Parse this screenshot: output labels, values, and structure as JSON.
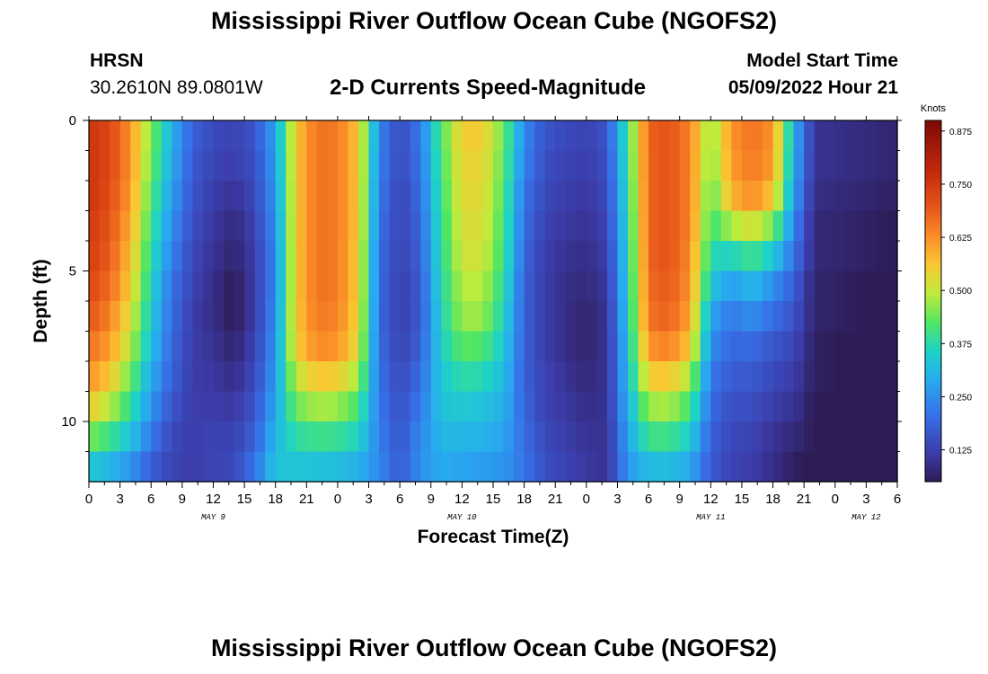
{
  "page": {
    "title": "Mississippi River Outflow Ocean Cube (NGOFS2)",
    "title_bottom": "Mississippi River Outflow Ocean Cube (NGOFS2)",
    "station": "HRSN",
    "coords": "30.2610N  89.0801W",
    "subtitle": "2-D Currents Speed-Magnitude",
    "model_start_label": "Model Start Time",
    "model_start_value": "05/09/2022 Hour 21"
  },
  "chart_data": {
    "type": "heatmap",
    "title": "2-D Currents Speed-Magnitude",
    "xlabel": "Forecast Time(Z)",
    "ylabel": "Depth (ft)",
    "colorbar_label": "Knots",
    "x_tick_labels": [
      "0",
      "3",
      "6",
      "9",
      "12",
      "15",
      "18",
      "21",
      "0",
      "3",
      "6",
      "9",
      "12",
      "15",
      "18",
      "21",
      "0",
      "3",
      "6",
      "9",
      "12",
      "15",
      "18",
      "21",
      "0",
      "3",
      "6"
    ],
    "day_labels": [
      {
        "label": "MAY 9",
        "hour": 12
      },
      {
        "label": "MAY 10",
        "hour": 36
      },
      {
        "label": "MAY 11",
        "hour": 60
      },
      {
        "label": "MAY 12",
        "hour": 75
      }
    ],
    "xlim_hours": [
      0,
      78
    ],
    "ylim_depth_ft": [
      0,
      12
    ],
    "y_tick_labels": [
      {
        "label": "0",
        "value": 0
      },
      {
        "label": "5",
        "value": 5
      },
      {
        "label": "10",
        "value": 10
      }
    ],
    "colorbar_ticks": [
      "0.125",
      "0.250",
      "0.375",
      "0.500",
      "0.625",
      "0.750",
      "0.875"
    ],
    "colorbar_tick_values": [
      0.125,
      0.25,
      0.375,
      0.5,
      0.625,
      0.75,
      0.875
    ],
    "colorbar_range": [
      0.05,
      0.9
    ],
    "depth_levels_ft": [
      0.5,
      1.5,
      2.5,
      3.5,
      4.5,
      5.5,
      6.5,
      7.5,
      8.5,
      9.5,
      10.5,
      11.5
    ],
    "profiles": [
      {
        "hour": 0,
        "values": [
          0.76,
          0.76,
          0.76,
          0.75,
          0.74,
          0.72,
          0.7,
          0.66,
          0.62,
          0.55,
          0.45,
          0.34
        ]
      },
      {
        "hour": 2,
        "values": [
          0.72,
          0.72,
          0.71,
          0.7,
          0.69,
          0.67,
          0.64,
          0.61,
          0.56,
          0.49,
          0.4,
          0.31
        ]
      },
      {
        "hour": 4,
        "values": [
          0.62,
          0.62,
          0.61,
          0.59,
          0.57,
          0.55,
          0.52,
          0.49,
          0.44,
          0.39,
          0.33,
          0.26
        ]
      },
      {
        "hour": 6,
        "values": [
          0.45,
          0.44,
          0.42,
          0.4,
          0.38,
          0.36,
          0.34,
          0.32,
          0.29,
          0.26,
          0.22,
          0.18
        ]
      },
      {
        "hour": 8,
        "values": [
          0.3,
          0.29,
          0.27,
          0.25,
          0.23,
          0.21,
          0.2,
          0.19,
          0.18,
          0.16,
          0.14,
          0.13
        ]
      },
      {
        "hour": 10,
        "values": [
          0.18,
          0.17,
          0.16,
          0.15,
          0.14,
          0.13,
          0.12,
          0.12,
          0.12,
          0.12,
          0.12,
          0.12
        ]
      },
      {
        "hour": 12,
        "values": [
          0.14,
          0.13,
          0.12,
          0.11,
          0.1,
          0.09,
          0.09,
          0.1,
          0.11,
          0.12,
          0.13,
          0.13
        ]
      },
      {
        "hour": 14,
        "values": [
          0.13,
          0.12,
          0.1,
          0.08,
          0.07,
          0.05,
          0.05,
          0.07,
          0.09,
          0.11,
          0.13,
          0.14
        ]
      },
      {
        "hour": 16,
        "values": [
          0.16,
          0.15,
          0.14,
          0.13,
          0.12,
          0.12,
          0.12,
          0.13,
          0.14,
          0.16,
          0.18,
          0.21
        ]
      },
      {
        "hour": 18,
        "values": [
          0.28,
          0.27,
          0.26,
          0.25,
          0.24,
          0.24,
          0.25,
          0.26,
          0.27,
          0.29,
          0.31,
          0.33
        ]
      },
      {
        "hour": 20,
        "values": [
          0.56,
          0.56,
          0.56,
          0.56,
          0.56,
          0.56,
          0.56,
          0.55,
          0.5,
          0.44,
          0.38,
          0.33
        ]
      },
      {
        "hour": 22,
        "values": [
          0.66,
          0.66,
          0.66,
          0.66,
          0.66,
          0.66,
          0.65,
          0.63,
          0.56,
          0.48,
          0.4,
          0.33
        ]
      },
      {
        "hour": 24,
        "values": [
          0.65,
          0.65,
          0.65,
          0.65,
          0.65,
          0.65,
          0.64,
          0.62,
          0.55,
          0.47,
          0.39,
          0.32
        ]
      },
      {
        "hour": 26,
        "values": [
          0.56,
          0.56,
          0.56,
          0.56,
          0.55,
          0.55,
          0.54,
          0.52,
          0.47,
          0.41,
          0.36,
          0.3
        ]
      },
      {
        "hour": 28,
        "values": [
          0.24,
          0.23,
          0.22,
          0.21,
          0.2,
          0.2,
          0.2,
          0.2,
          0.21,
          0.22,
          0.23,
          0.24
        ]
      },
      {
        "hour": 30,
        "values": [
          0.14,
          0.14,
          0.13,
          0.13,
          0.13,
          0.12,
          0.12,
          0.13,
          0.14,
          0.15,
          0.16,
          0.17
        ]
      },
      {
        "hour": 32,
        "values": [
          0.22,
          0.21,
          0.2,
          0.19,
          0.18,
          0.17,
          0.17,
          0.18,
          0.2,
          0.22,
          0.24,
          0.25
        ]
      },
      {
        "hour": 34,
        "values": [
          0.42,
          0.41,
          0.4,
          0.39,
          0.38,
          0.37,
          0.36,
          0.35,
          0.34,
          0.33,
          0.31,
          0.29
        ]
      },
      {
        "hour": 36,
        "values": [
          0.55,
          0.54,
          0.53,
          0.52,
          0.51,
          0.49,
          0.47,
          0.43,
          0.38,
          0.34,
          0.31,
          0.28
        ]
      },
      {
        "hour": 38,
        "values": [
          0.55,
          0.54,
          0.53,
          0.52,
          0.51,
          0.49,
          0.47,
          0.42,
          0.37,
          0.33,
          0.3,
          0.27
        ]
      },
      {
        "hour": 40,
        "values": [
          0.44,
          0.43,
          0.42,
          0.41,
          0.4,
          0.38,
          0.36,
          0.34,
          0.32,
          0.3,
          0.28,
          0.26
        ]
      },
      {
        "hour": 42,
        "values": [
          0.24,
          0.23,
          0.21,
          0.2,
          0.19,
          0.18,
          0.18,
          0.18,
          0.18,
          0.19,
          0.2,
          0.21
        ]
      },
      {
        "hour": 44,
        "values": [
          0.16,
          0.15,
          0.14,
          0.13,
          0.12,
          0.12,
          0.12,
          0.12,
          0.13,
          0.13,
          0.14,
          0.15
        ]
      },
      {
        "hour": 46,
        "values": [
          0.14,
          0.13,
          0.12,
          0.11,
          0.1,
          0.09,
          0.09,
          0.09,
          0.1,
          0.11,
          0.12,
          0.13
        ]
      },
      {
        "hour": 48,
        "values": [
          0.13,
          0.12,
          0.11,
          0.1,
          0.09,
          0.08,
          0.07,
          0.07,
          0.08,
          0.09,
          0.1,
          0.11
        ]
      },
      {
        "hour": 50,
        "values": [
          0.16,
          0.15,
          0.14,
          0.13,
          0.12,
          0.11,
          0.1,
          0.1,
          0.1,
          0.1,
          0.1,
          0.1
        ]
      },
      {
        "hour": 52,
        "values": [
          0.4,
          0.39,
          0.38,
          0.37,
          0.36,
          0.35,
          0.34,
          0.33,
          0.32,
          0.3,
          0.28,
          0.26
        ]
      },
      {
        "hour": 54,
        "values": [
          0.68,
          0.68,
          0.68,
          0.68,
          0.68,
          0.67,
          0.66,
          0.62,
          0.55,
          0.47,
          0.4,
          0.32
        ]
      },
      {
        "hour": 56,
        "values": [
          0.7,
          0.7,
          0.7,
          0.7,
          0.7,
          0.69,
          0.68,
          0.64,
          0.56,
          0.48,
          0.4,
          0.32
        ]
      },
      {
        "hour": 58,
        "values": [
          0.64,
          0.64,
          0.64,
          0.64,
          0.63,
          0.62,
          0.6,
          0.56,
          0.48,
          0.41,
          0.35,
          0.29
        ]
      },
      {
        "hour": 60,
        "values": [
          0.45,
          0.44,
          0.42,
          0.4,
          0.37,
          0.33,
          0.28,
          0.25,
          0.22,
          0.2,
          0.18,
          0.17
        ]
      },
      {
        "hour": 62,
        "values": [
          0.62,
          0.61,
          0.58,
          0.48,
          0.36,
          0.27,
          0.22,
          0.19,
          0.17,
          0.15,
          0.14,
          0.13
        ]
      },
      {
        "hour": 64,
        "values": [
          0.66,
          0.65,
          0.63,
          0.52,
          0.4,
          0.31,
          0.25,
          0.2,
          0.17,
          0.15,
          0.13,
          0.12
        ]
      },
      {
        "hour": 66,
        "values": [
          0.62,
          0.61,
          0.56,
          0.45,
          0.34,
          0.25,
          0.2,
          0.16,
          0.14,
          0.12,
          0.1,
          0.09
        ]
      },
      {
        "hour": 68,
        "values": [
          0.3,
          0.29,
          0.27,
          0.24,
          0.21,
          0.18,
          0.16,
          0.14,
          0.12,
          0.1,
          0.08,
          0.06
        ]
      },
      {
        "hour": 70,
        "values": [
          0.1,
          0.1,
          0.09,
          0.08,
          0.08,
          0.07,
          0.07,
          0.06,
          0.06,
          0.05,
          0.05,
          0.04
        ]
      }
    ]
  },
  "colors": {
    "axis": "#000000",
    "background": "#ffffff"
  }
}
